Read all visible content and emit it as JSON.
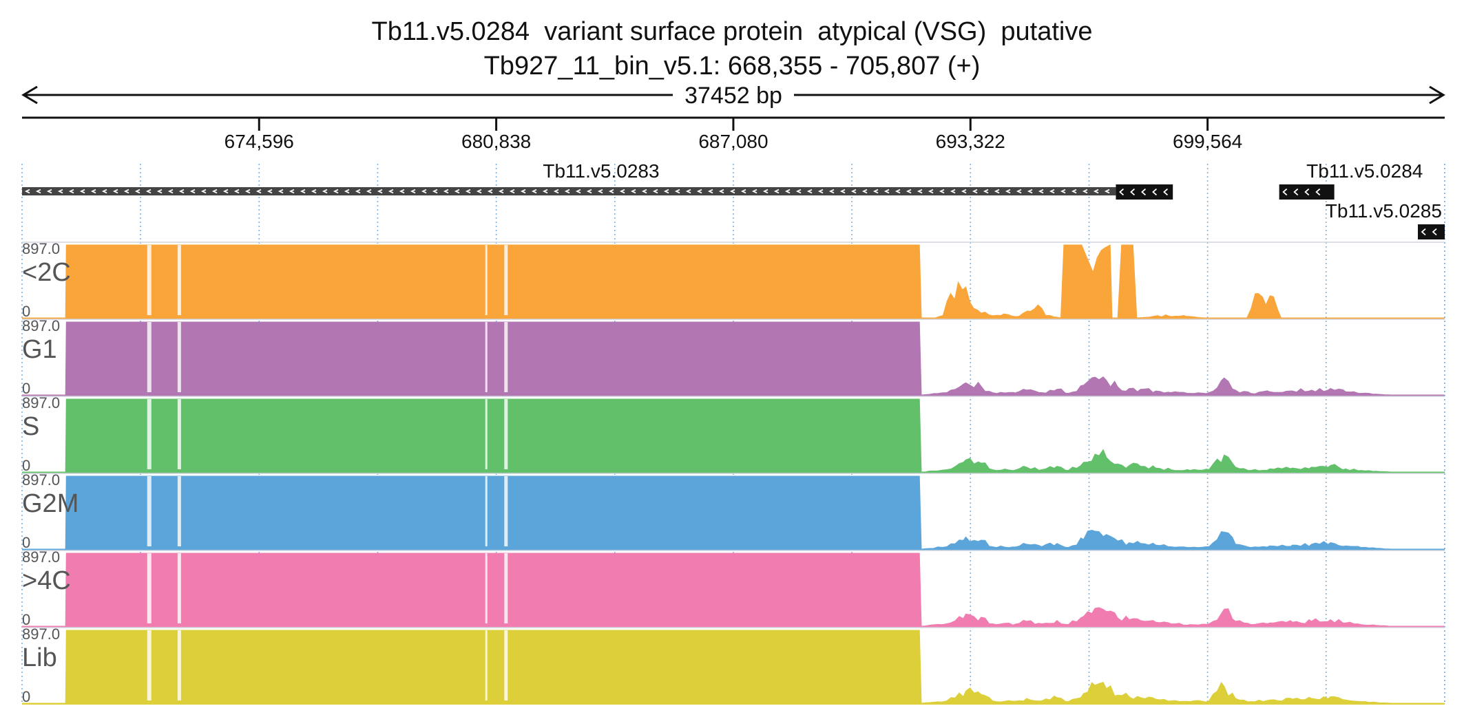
{
  "header": {
    "title": "Tb11.v5.0284  variant surface protein  atypical (VSG)  putative",
    "locus": "Tb927_11_bin_v5.1: 668,355 - 705,807 (+)",
    "span_label": "37452 bp"
  },
  "chart_data": {
    "type": "area",
    "region": {
      "chrom": "Tb927_11_bin_v5.1",
      "start": 668355,
      "end": 705807,
      "strand": "+"
    },
    "ticks": [
      {
        "pos": 674596,
        "label": "674,596"
      },
      {
        "pos": 680838,
        "label": "680,838"
      },
      {
        "pos": 687080,
        "label": "687,080"
      },
      {
        "pos": 693322,
        "label": "693,322"
      },
      {
        "pos": 699564,
        "label": "699,564"
      }
    ],
    "genes": [
      {
        "name": "Tb11.v5.0283",
        "start": 668355,
        "end": 697150,
        "strand": "-",
        "cds_start": 697150,
        "cds_end": 698650,
        "label_pos": 683600,
        "label_row": 0
      },
      {
        "name": "Tb11.v5.0284",
        "start": 701450,
        "end": 702900,
        "strand": "-",
        "label_pos": 703700,
        "label_row": 0
      },
      {
        "name": "Tb11.v5.0285",
        "start": 705100,
        "end": 705807,
        "strand": "-",
        "label_pos": 704200,
        "label_row": 1
      }
    ],
    "tracks": [
      {
        "name": "<2C",
        "color": "#f9a53a",
        "ymax": 897.0,
        "ymin": 0
      },
      {
        "name": "G1",
        "color": "#b276b2",
        "ymax": 897.0,
        "ymin": 0
      },
      {
        "name": "S",
        "color": "#62c06a",
        "ymax": 897.0,
        "ymin": 0
      },
      {
        "name": "G2M",
        "color": "#5ba5da",
        "ymax": 897.0,
        "ymin": 0
      },
      {
        "name": ">4C",
        "color": "#f17cb0",
        "ymax": 897.0,
        "ymin": 0
      },
      {
        "name": "Lib",
        "color": "#dccf3a",
        "ymax": 897.0,
        "ymin": 0
      }
    ],
    "profiles": {
      "shared": [
        [
          668355,
          0
        ],
        [
          669500,
          0
        ],
        [
          669520,
          897
        ],
        [
          691980,
          897
        ],
        [
          692030,
          0
        ],
        [
          692700,
          30
        ],
        [
          693200,
          150
        ],
        [
          693600,
          110
        ],
        [
          693900,
          30
        ],
        [
          694500,
          25
        ],
        [
          694800,
          60
        ],
        [
          695200,
          30
        ],
        [
          695600,
          70
        ],
        [
          695900,
          20
        ],
        [
          696300,
          120
        ],
        [
          696600,
          220
        ],
        [
          696900,
          180
        ],
        [
          697200,
          100
        ],
        [
          697500,
          80
        ],
        [
          697800,
          70
        ],
        [
          698200,
          50
        ],
        [
          698600,
          30
        ],
        [
          699100,
          20
        ],
        [
          699600,
          30
        ],
        [
          700000,
          210
        ],
        [
          700300,
          60
        ],
        [
          700700,
          20
        ],
        [
          701200,
          40
        ],
        [
          701800,
          50
        ],
        [
          702300,
          60
        ],
        [
          702800,
          80
        ],
        [
          703200,
          40
        ],
        [
          703600,
          20
        ],
        [
          704000,
          10
        ],
        [
          704400,
          0
        ],
        [
          705807,
          0
        ]
      ],
      "<2C": [
        [
          668355,
          0
        ],
        [
          669500,
          0
        ],
        [
          669520,
          897
        ],
        [
          691980,
          897
        ],
        [
          692030,
          0
        ],
        [
          692400,
          0
        ],
        [
          692600,
          30
        ],
        [
          692800,
          300
        ],
        [
          693000,
          440
        ],
        [
          693200,
          380
        ],
        [
          693400,
          120
        ],
        [
          693600,
          60
        ],
        [
          693800,
          40
        ],
        [
          694200,
          50
        ],
        [
          694600,
          20
        ],
        [
          694900,
          80
        ],
        [
          695100,
          160
        ],
        [
          695300,
          30
        ],
        [
          695700,
          0
        ],
        [
          695780,
          897
        ],
        [
          696250,
          897
        ],
        [
          696550,
          560
        ],
        [
          696850,
          860
        ],
        [
          697000,
          897
        ],
        [
          697050,
          0
        ],
        [
          697200,
          0
        ],
        [
          697300,
          897
        ],
        [
          697600,
          897
        ],
        [
          697700,
          0
        ],
        [
          698500,
          30
        ],
        [
          699000,
          20
        ],
        [
          699500,
          0
        ],
        [
          700600,
          0
        ],
        [
          700900,
          300
        ],
        [
          701100,
          160
        ],
        [
          701300,
          260
        ],
        [
          701500,
          0
        ],
        [
          705807,
          0
        ]
      ]
    }
  }
}
